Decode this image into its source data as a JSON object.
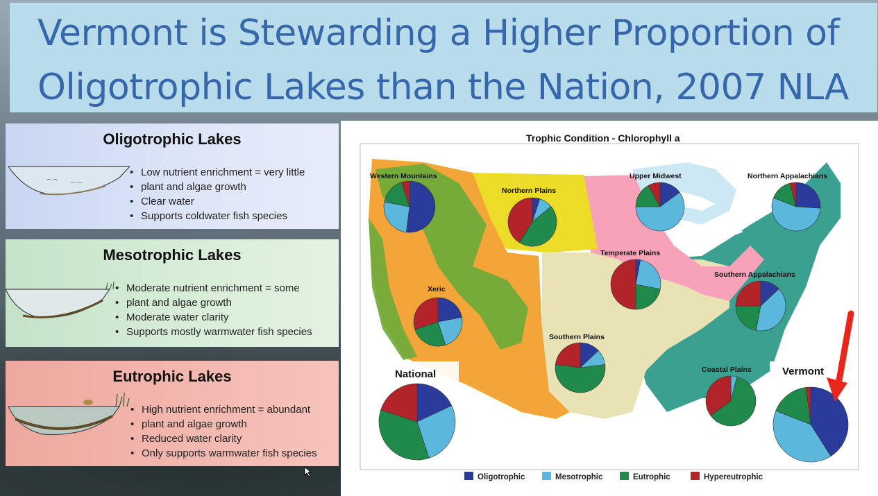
{
  "slide": {
    "title_line1": "Vermont is Stewarding a Higher Proportion of",
    "title_line2": "Oligotrophic Lakes than the Nation, 2007 NLA"
  },
  "panels": {
    "oligotrophic": {
      "heading": "Oligotrophic Lakes",
      "bullets": [
        "Low nutrient enrichment = very little",
        "plant and algae growth",
        "Clear water",
        "Supports coldwater fish species"
      ]
    },
    "mesotrophic": {
      "heading": "Mesotrophic Lakes",
      "bullets": [
        "Moderate nutrient enrichment = some",
        "plant and algae growth",
        "Moderate water clarity",
        "Supports mostly warmwater fish species"
      ]
    },
    "eutrophic": {
      "heading": "Eutrophic Lakes",
      "bullets": [
        "High nutrient enrichment = abundant",
        "plant and algae growth",
        "Reduced water clarity",
        "Only supports warmwater fish species"
      ]
    }
  },
  "chart_data": {
    "type": "pie",
    "title": "Trophic Condition - Chlorophyll a",
    "legend_position": "bottom",
    "categories": [
      "Oligotrophic",
      "Mesotrophic",
      "Eutrophic",
      "Hypereutrophic"
    ],
    "colors": [
      "#2b3b9c",
      "#5ab8dd",
      "#1f8a4a",
      "#b2242a"
    ],
    "regions": [
      {
        "name": "Western Mountains",
        "values": [
          52,
          26,
          17,
          5
        ]
      },
      {
        "name": "Northern Plains",
        "values": [
          5,
          9,
          45,
          41
        ]
      },
      {
        "name": "Upper Midwest",
        "values": [
          15,
          60,
          17,
          8
        ]
      },
      {
        "name": "Northern Appalachians",
        "values": [
          26,
          55,
          15,
          4
        ]
      },
      {
        "name": "Temperate Plains",
        "values": [
          3,
          25,
          22,
          50
        ]
      },
      {
        "name": "Xeric",
        "values": [
          22,
          23,
          25,
          30
        ]
      },
      {
        "name": "Southern Appalachians",
        "values": [
          13,
          40,
          22,
          25
        ]
      },
      {
        "name": "Southern Plains",
        "values": [
          13,
          10,
          54,
          23
        ]
      },
      {
        "name": "Coastal Plains",
        "values": [
          0,
          4,
          61,
          35
        ]
      },
      {
        "name": "National",
        "values": [
          18,
          27,
          35,
          20
        ]
      },
      {
        "name": "Vermont",
        "values": [
          41,
          40,
          17,
          2
        ]
      }
    ]
  },
  "map_colors": {
    "water": "#ffffff",
    "western_orange": "#f3a537",
    "mountain_green": "#6bab3b",
    "plains_yellow": "#ecdc28",
    "midwest_pink": "#f7a2b8",
    "lakes_blue": "#cce8f4",
    "plains_tan": "#e9e2b5",
    "east_teal": "#3ba090",
    "arrow_red": "#e8261b"
  }
}
